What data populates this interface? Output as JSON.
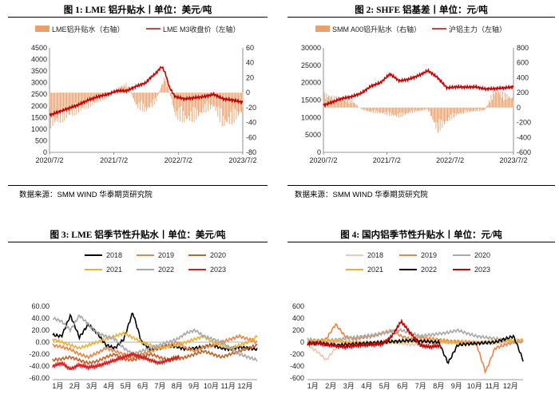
{
  "panels": [
    {
      "title": "图 1: LME 铝升贴水丨单位：美元/吨",
      "source": "数据来源：SMM WIND 华泰期货研究院"
    },
    {
      "title": "图 2: SHFE 铝基差丨单位：元/吨",
      "source": "数据来源：SMM WIND 华泰期货研究院"
    },
    {
      "title": "图 3: LME 铝季节性升贴水丨单位：美元/吨",
      "source": ""
    },
    {
      "title": "图 4: 国内铝季节性升贴水丨单位：元/吨",
      "source": ""
    }
  ],
  "colors": {
    "bar_orange": "#e8a06c",
    "line_red": "#c00000",
    "y2018": "#000000",
    "y2019": "#e8854a",
    "y2020": "#c0622a",
    "y2021": "#e8b040",
    "y2022": "#a8a8a8",
    "y2023": "#d62020",
    "c4_2018": "#f0c8b0",
    "c4_2019": "#e8854a",
    "c4_2020": "#a8a8a8",
    "c4_2021": "#e8b040",
    "c4_2022": "#000000",
    "c4_2023": "#c00000"
  },
  "chart_data": [
    {
      "type": "bar+line",
      "legend": [
        "LME铝升贴水（右轴）",
        "LME M3收盘价（左轴）"
      ],
      "x_ticks": [
        "2020/7/2",
        "2021/7/2",
        "2022/7/2",
        "2023/7/2"
      ],
      "y_left": {
        "min": 0,
        "max": 4500,
        "step": 500,
        "ticks": [
          "0",
          "500",
          "1000",
          "1500",
          "2000",
          "2500",
          "3000",
          "3500",
          "4000",
          "4500"
        ]
      },
      "y_right": {
        "min": -80,
        "max": 60,
        "step": 20,
        "ticks": [
          "-80",
          "-60",
          "-40",
          "-20",
          "0",
          "20",
          "40",
          "60"
        ]
      },
      "line_series": {
        "name": "LME M3收盘价（左轴）",
        "x": [
          0,
          0.05,
          0.1,
          0.15,
          0.2,
          0.25,
          0.3,
          0.35,
          0.4,
          0.45,
          0.5,
          0.52,
          0.55,
          0.58,
          0.6,
          0.62,
          0.65,
          0.7,
          0.75,
          0.8,
          0.85,
          0.9,
          0.95,
          1.0
        ],
        "y": [
          1600,
          1750,
          1900,
          2050,
          2250,
          2400,
          2500,
          2650,
          2650,
          2850,
          3000,
          3200,
          3400,
          3700,
          3400,
          2800,
          2400,
          2300,
          2350,
          2400,
          2500,
          2300,
          2250,
          2150
        ]
      },
      "bar_series": {
        "name": "LME铝升贴水（右轴）",
        "x": [
          0,
          0.05,
          0.1,
          0.15,
          0.2,
          0.25,
          0.3,
          0.35,
          0.4,
          0.45,
          0.5,
          0.55,
          0.6,
          0.65,
          0.7,
          0.75,
          0.8,
          0.85,
          0.9,
          0.95,
          1.0
        ],
        "y": [
          -35,
          -30,
          -25,
          -20,
          -15,
          -10,
          -5,
          5,
          10,
          -15,
          -20,
          -10,
          20,
          -25,
          -30,
          -28,
          -20,
          -15,
          -35,
          -30,
          -20
        ]
      }
    },
    {
      "type": "bar+line",
      "legend": [
        "SMM A00铝升贴水（右轴）",
        "沪铝主力（左轴）"
      ],
      "x_ticks": [
        "2020/7/2",
        "2021/7/2",
        "2022/7/2",
        "2023/7/2"
      ],
      "y_left": {
        "min": 0,
        "max": 30000,
        "step": 5000,
        "ticks": [
          "0",
          "5000",
          "10000",
          "15000",
          "20000",
          "25000",
          "30000"
        ]
      },
      "y_right": {
        "min": -600,
        "max": 800,
        "step": 200,
        "ticks": [
          "-600",
          "-400",
          "-200",
          "0",
          "200",
          "400",
          "600",
          "800"
        ]
      },
      "line_series": {
        "name": "沪铝主力（左轴）",
        "x": [
          0,
          0.05,
          0.1,
          0.15,
          0.2,
          0.25,
          0.3,
          0.35,
          0.4,
          0.45,
          0.5,
          0.55,
          0.6,
          0.65,
          0.7,
          0.75,
          0.8,
          0.85,
          0.9,
          0.95,
          1.0
        ],
        "y": [
          13500,
          14500,
          15500,
          16000,
          17000,
          19000,
          20000,
          22500,
          20500,
          21000,
          22000,
          23500,
          21500,
          18500,
          18800,
          18700,
          18800,
          18200,
          18300,
          18500,
          18800
        ]
      },
      "bar_series": {
        "name": "SMM A00铝升贴水（右轴）",
        "x": [
          0,
          0.05,
          0.1,
          0.15,
          0.2,
          0.25,
          0.3,
          0.35,
          0.4,
          0.45,
          0.5,
          0.55,
          0.6,
          0.65,
          0.7,
          0.75,
          0.8,
          0.85,
          0.9,
          0.95,
          1.0
        ],
        "y": [
          150,
          120,
          100,
          80,
          -20,
          -50,
          -60,
          -80,
          -100,
          -60,
          -40,
          -20,
          -250,
          -150,
          -80,
          -50,
          -40,
          -30,
          200,
          150,
          100
        ]
      }
    },
    {
      "type": "line",
      "series_names": [
        "2018",
        "2019",
        "2020",
        "2021",
        "2022",
        "2023"
      ],
      "x_ticks": [
        "1月",
        "2月",
        "3月",
        "4月",
        "5月",
        "6月",
        "7月",
        "8月",
        "9月",
        "10月",
        "11月",
        "12月"
      ],
      "y": {
        "min": -60,
        "max": 60,
        "step": 20,
        "ticks": [
          "-60.00",
          "-40.00",
          "-20.00",
          "0.00",
          "20.00",
          "40.00",
          "60.00"
        ]
      },
      "series": [
        {
          "name": "2018",
          "values": [
            12,
            10,
            45,
            8,
            30,
            15,
            -5,
            -10,
            5,
            50,
            0,
            -12,
            -10,
            -5,
            -8,
            -12,
            -10,
            -8,
            -5,
            -10,
            -12,
            -8,
            -10,
            -12
          ]
        },
        {
          "name": "2019",
          "values": [
            -5,
            -8,
            -12,
            -20,
            -25,
            -18,
            -10,
            -15,
            -20,
            -25,
            -20,
            -15,
            -10,
            -5,
            0,
            -10,
            -15,
            -8,
            -5,
            0,
            5,
            10,
            5,
            0
          ]
        },
        {
          "name": "2020",
          "values": [
            -30,
            -28,
            -25,
            -30,
            -35,
            -32,
            -25,
            -20,
            -28,
            -30,
            -25,
            -20,
            -25,
            -30,
            -28,
            -25,
            -20,
            -15,
            -20,
            -25,
            -20,
            -15,
            -10,
            -5
          ]
        },
        {
          "name": "2021",
          "values": [
            5,
            0,
            -5,
            -10,
            -5,
            0,
            5,
            10,
            15,
            8,
            0,
            -5,
            -10,
            -8,
            -5,
            0,
            5,
            10,
            0,
            -5,
            -10,
            -5,
            0,
            10
          ]
        },
        {
          "name": "2022",
          "values": [
            40,
            35,
            20,
            45,
            30,
            15,
            10,
            5,
            -10,
            -20,
            -15,
            -10,
            -5,
            0,
            5,
            15,
            20,
            10,
            5,
            0,
            -10,
            -20,
            -25,
            -30
          ]
        },
        {
          "name": "2023",
          "values": [
            -40,
            -35,
            -45,
            -38,
            -42,
            -40,
            -35,
            -30,
            -25,
            -20,
            -25,
            -30,
            -35,
            -30,
            -25,
            -20,
            -15,
            -20,
            -25,
            -30,
            -28,
            -25,
            -20,
            -15
          ]
        }
      ]
    },
    {
      "type": "line",
      "series_names": [
        "2018",
        "2019",
        "2020",
        "2021",
        "2022",
        "2023"
      ],
      "x_ticks": [
        "1月",
        "2月",
        "3月",
        "4月",
        "5月",
        "6月",
        "7月",
        "8月",
        "9月",
        "10月",
        "11月",
        "12月"
      ],
      "y": {
        "min": -600,
        "max": 600,
        "step": 200,
        "ticks": [
          "-600",
          "-400",
          "-200",
          "0",
          "200",
          "400",
          "600"
        ]
      },
      "series": [
        {
          "name": "2018",
          "values": [
            -50,
            -150,
            -300,
            -100,
            -50,
            -30,
            -20,
            -10,
            0,
            10,
            -20,
            -40,
            -30,
            -20,
            -10,
            0,
            10,
            20,
            0,
            -10,
            -20,
            -10,
            0,
            10
          ]
        },
        {
          "name": "2019",
          "values": [
            0,
            20,
            50,
            300,
            100,
            50,
            80,
            100,
            150,
            200,
            100,
            50,
            80,
            60,
            40,
            20,
            10,
            0,
            -20,
            -500,
            -100,
            -50,
            0,
            20
          ]
        },
        {
          "name": "2020",
          "values": [
            50,
            30,
            20,
            40,
            60,
            80,
            100,
            120,
            150,
            180,
            200,
            150,
            100,
            120,
            140,
            160,
            200,
            150,
            100,
            80,
            60,
            40,
            20,
            0
          ]
        },
        {
          "name": "2021",
          "values": [
            10,
            20,
            30,
            20,
            10,
            0,
            -10,
            -20,
            -10,
            0,
            10,
            20,
            30,
            20,
            10,
            0,
            -10,
            -20,
            -10,
            0,
            10,
            20,
            30,
            40
          ]
        },
        {
          "name": "2022",
          "values": [
            -20,
            -10,
            -30,
            -50,
            -40,
            -30,
            -20,
            -10,
            0,
            10,
            20,
            30,
            20,
            10,
            0,
            -350,
            -50,
            -30,
            -20,
            -10,
            0,
            50,
            100,
            -300
          ]
        },
        {
          "name": "2023",
          "values": [
            -30,
            -20,
            -40,
            -60,
            -80,
            -60,
            -50,
            -40,
            -30,
            100,
            350,
            150,
            -50,
            -80,
            -60,
            -50,
            -40,
            -20,
            0,
            20,
            40,
            60,
            80,
            -50
          ]
        }
      ]
    }
  ]
}
